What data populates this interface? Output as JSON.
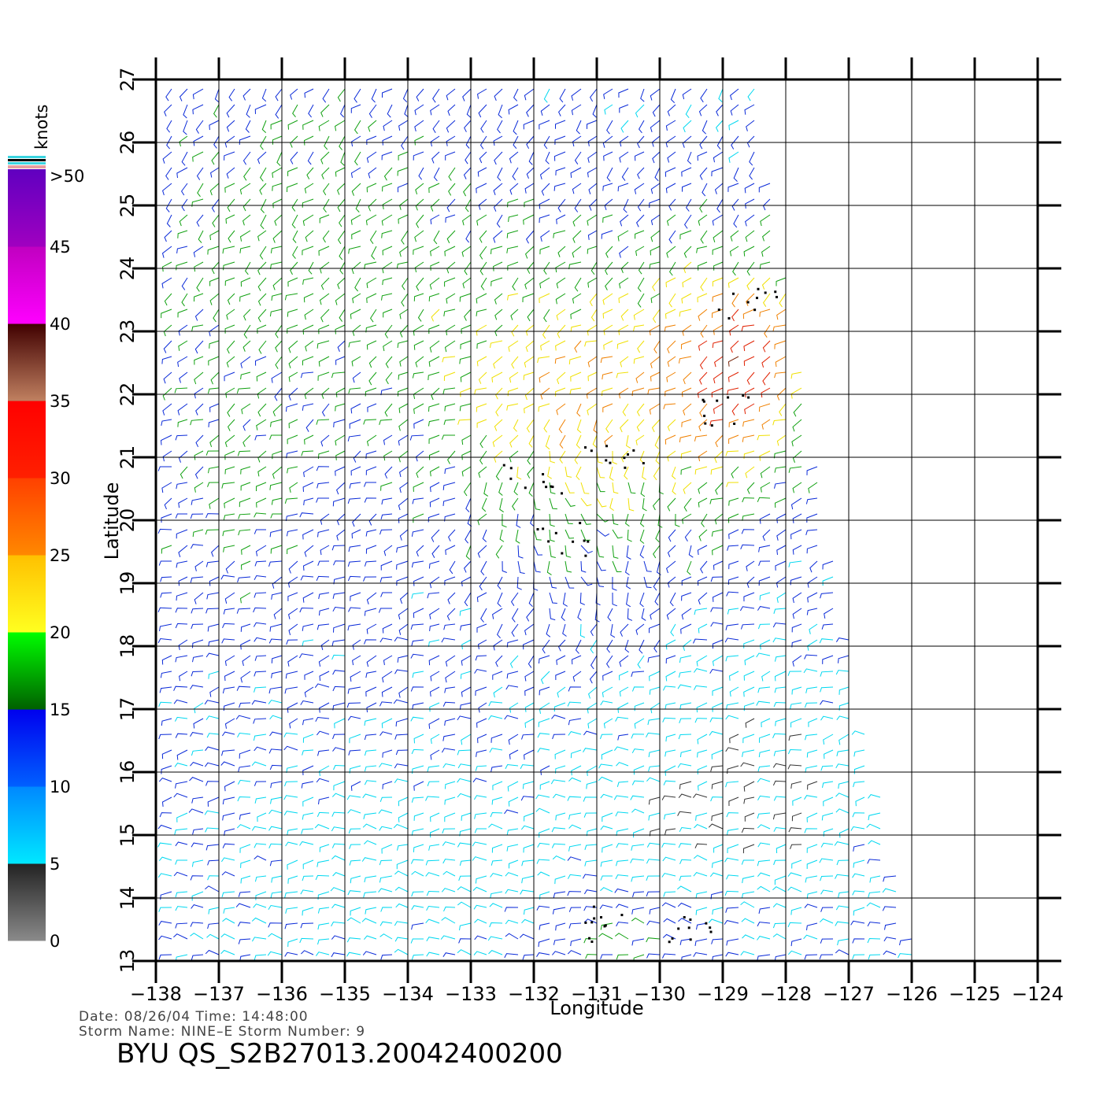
{
  "header": {
    "date_line": "Date: 08/26/04   Time: 14:48:00",
    "storm_line": "Storm  Name: NINE–E   Storm  Number: 9",
    "product_id": "BYU  QS_S2B27013.20042400200"
  },
  "axes": {
    "xlabel": "Longitude",
    "ylabel": "Latitude",
    "lon_ticks": [
      "−138",
      "−137",
      "−136",
      "−135",
      "−134",
      "−133",
      "−132",
      "−131",
      "−130",
      "−129",
      "−128",
      "−127",
      "−126",
      "−125",
      "−124"
    ],
    "lat_ticks": [
      "13",
      "14",
      "15",
      "16",
      "17",
      "18",
      "19",
      "20",
      "21",
      "22",
      "23",
      "24",
      "25",
      "26",
      "27"
    ],
    "lon_range": [
      -138,
      -124
    ],
    "lat_range": [
      13,
      27
    ]
  },
  "legend": {
    "unit": "knots",
    "labels": [
      ">50",
      "45",
      "40",
      "35",
      "30",
      "25",
      "20",
      "15",
      "10",
      "5",
      "0"
    ],
    "bands": [
      {
        "range": "0-5",
        "colors": [
          "#8a8a8a",
          "#222222"
        ]
      },
      {
        "range": "5-10",
        "colors": [
          "#00e8ff",
          "#0088ff"
        ]
      },
      {
        "range": "10-15",
        "colors": [
          "#0060ff",
          "#0000ee"
        ]
      },
      {
        "range": "15-20",
        "colors": [
          "#006000",
          "#00ff00"
        ]
      },
      {
        "range": "20-25",
        "colors": [
          "#ffff20",
          "#ffc000"
        ]
      },
      {
        "range": "25-30",
        "colors": [
          "#ff8800",
          "#ff4000"
        ]
      },
      {
        "range": "30-35",
        "colors": [
          "#ff2000",
          "#ff0000"
        ]
      },
      {
        "range": "35-40",
        "colors": [
          "#c08060",
          "#400000"
        ]
      },
      {
        "range": "40-45",
        "colors": [
          "#ff00ff",
          "#c000c0"
        ]
      },
      {
        "range": "45-50",
        "colors": [
          "#a000c0",
          "#6000c0"
        ]
      }
    ]
  },
  "chart_data": {
    "type": "wind barb map",
    "title": "",
    "xlabel": "Longitude",
    "ylabel": "Latitude",
    "xlim": [
      -138,
      -124
    ],
    "ylim": [
      13,
      27
    ],
    "grid": true,
    "swath_edge_lon_at_lat": [
      {
        "lat": 27,
        "lon": -128.5
      },
      {
        "lat": 21,
        "lon": -127.5
      },
      {
        "lat": 17,
        "lon": -126.8
      },
      {
        "lat": 13,
        "lon": -125.9
      }
    ],
    "wind_speed_regions_knots": [
      {
        "region": "northwest",
        "lon": [
          -138,
          -133
        ],
        "lat": [
          22,
          27
        ],
        "speed": [
          12,
          18
        ]
      },
      {
        "region": "center-north",
        "lon": [
          -133,
          -129
        ],
        "lat": [
          20,
          25
        ],
        "speed": [
          20,
          28
        ]
      },
      {
        "region": "northeast swath edge",
        "lon": [
          -130,
          -127.5
        ],
        "lat": [
          20.5,
          24
        ],
        "speed": [
          28,
          36
        ]
      },
      {
        "region": "center",
        "lon": [
          -132,
          -128
        ],
        "lat": [
          18,
          20
        ],
        "speed": [
          10,
          15
        ]
      },
      {
        "region": "southeast calm",
        "lon": [
          -131,
          -126
        ],
        "lat": [
          14,
          17.5
        ],
        "speed": [
          2,
          8
        ]
      },
      {
        "region": "southwest",
        "lon": [
          -138,
          -131
        ],
        "lat": [
          13,
          17
        ],
        "speed": [
          8,
          14
        ]
      }
    ],
    "rain_flag_clusters": [
      {
        "lon": -129.0,
        "lat": 21.7
      },
      {
        "lon": -130.7,
        "lat": 21.0
      },
      {
        "lon": -131.5,
        "lat": 19.7
      },
      {
        "lon": -132.0,
        "lat": 20.6
      },
      {
        "lon": -131.0,
        "lat": 13.6
      },
      {
        "lon": -129.5,
        "lat": 13.5
      },
      {
        "lon": -128.6,
        "lat": 23.5
      }
    ]
  },
  "colors": {
    "frame": "#000000",
    "background": "#ffffff"
  }
}
